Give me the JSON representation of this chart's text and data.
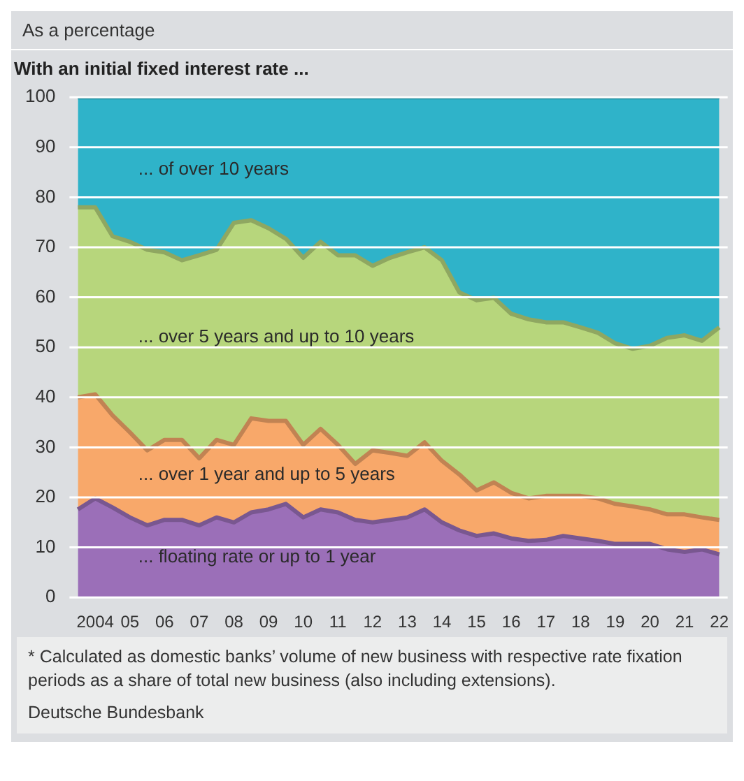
{
  "chart_data": {
    "type": "area",
    "stacked": true,
    "title": "With an initial fixed interest rate ...",
    "ylabel": "As a percentage",
    "categories": [
      null,
      "2004",
      null,
      "05",
      null,
      "06",
      null,
      "07",
      null,
      "08",
      null,
      "09",
      null,
      "10",
      null,
      "11",
      null,
      "12",
      null,
      "13",
      null,
      "14",
      null,
      "15",
      null,
      "16",
      null,
      "17",
      null,
      "18",
      null,
      "19",
      null,
      "20",
      null,
      "21",
      null,
      "22"
    ],
    "series": [
      {
        "name": "... floating rate or up to 1 year",
        "color": "#9b6fb8",
        "values": [
          17.6,
          19.8,
          18,
          16,
          14.4,
          15.5,
          15.5,
          14.4,
          16,
          15,
          17,
          17.6,
          18.7,
          16,
          17.6,
          17,
          15.5,
          15,
          15.5,
          16,
          17.6,
          15,
          13.4,
          12.3,
          12.8,
          11.8,
          11.3,
          11.5,
          12.3,
          11.8,
          11.3,
          10.7,
          10.7,
          10.7,
          9.6,
          9.1,
          9.6,
          8.6
        ]
      },
      {
        "name": "... over 1 year and up to 5 years",
        "color": "#f8a86a",
        "values": [
          22.4,
          20.8,
          18.4,
          17,
          15,
          16,
          16,
          13.4,
          15.5,
          15.5,
          18.8,
          17.7,
          16.6,
          14.5,
          16.1,
          13.5,
          11.2,
          14.4,
          13.4,
          12.3,
          13.4,
          12.3,
          11.2,
          9.1,
          10.2,
          9.1,
          8.5,
          8.8,
          8,
          8.5,
          8.5,
          8,
          7.5,
          6.9,
          7,
          7.5,
          6.4,
          6.9
        ]
      },
      {
        "name": "... over 5 years and up to 10 years",
        "color": "#b7d67c",
        "values": [
          38,
          37.4,
          35.8,
          38.1,
          40.1,
          37.5,
          35.9,
          40.6,
          38,
          44.4,
          39.6,
          38.5,
          36.4,
          37.4,
          37.4,
          37.9,
          41.7,
          36.9,
          39,
          40.7,
          39,
          40.1,
          36.4,
          38,
          36.9,
          35.8,
          35.8,
          34.7,
          34.7,
          33.7,
          33.1,
          32.1,
          31.5,
          32.7,
          35.3,
          35.8,
          35.3,
          38.5
        ]
      },
      {
        "name": "... of over 10 years",
        "color": "#2fb3c9",
        "values": [
          22,
          22,
          27.8,
          28.9,
          30.5,
          31,
          32.6,
          31.6,
          30.5,
          25.1,
          24.6,
          26.2,
          28.3,
          32.1,
          28.9,
          31.6,
          31.6,
          33.7,
          32.1,
          31,
          30,
          32.6,
          39,
          40.6,
          40.1,
          43.3,
          44.4,
          45,
          45,
          46,
          47.1,
          49.2,
          50.3,
          49.7,
          48.1,
          47.6,
          48.7,
          46
        ]
      }
    ],
    "ylim": [
      0,
      100
    ],
    "yticks": [
      0,
      10,
      20,
      30,
      40,
      50,
      60,
      70,
      80,
      90,
      100
    ],
    "grid": "y",
    "legend": false,
    "annotations": [
      "* Calculated as domestic banks’ volume of new business with respective rate fixation periods as a share of total new business (also including extensions).",
      "Deutsche Bundesbank"
    ]
  }
}
